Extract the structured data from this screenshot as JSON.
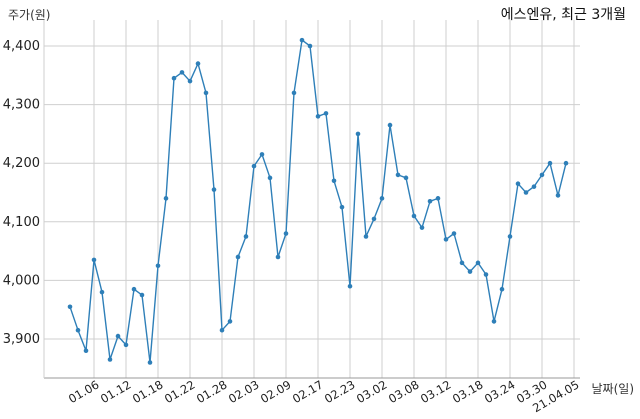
{
  "chart_data": {
    "type": "line",
    "title": "에스엔유, 최근 3개월",
    "xlabel": "날짜(일)",
    "ylabel": "주가(원)",
    "ylim": [
      3850,
      4430
    ],
    "yticks": [
      3900,
      4000,
      4100,
      4200,
      4300,
      4400
    ],
    "ytick_labels": [
      "3,900",
      "4,000",
      "4,100",
      "4,200",
      "4,300",
      "4,400"
    ],
    "xtick_labels": [
      "01.06",
      "01.12",
      "01.18",
      "01.22",
      "01.28",
      "02.03",
      "02.09",
      "02.17",
      "02.23",
      "03.02",
      "03.08",
      "03.12",
      "03.18",
      "03.24",
      "03.30",
      "21.04.05"
    ],
    "xtick_index": [
      3,
      7,
      11,
      15,
      19,
      23,
      27,
      31,
      35,
      39,
      43,
      47,
      51,
      55,
      59,
      63
    ],
    "grid": true,
    "line_color": "#2e7fb8",
    "series": [
      {
        "values": [
          3955,
          3915,
          3880,
          4035,
          3980,
          3865,
          3905,
          3890,
          3985,
          3975,
          3860,
          4025,
          4140,
          4345,
          4355,
          4340,
          4370,
          4320,
          4155,
          3915,
          3930,
          4040,
          4075,
          4195,
          4215,
          4175,
          4040,
          4080,
          4320,
          4410,
          4400,
          4280,
          4285,
          4170,
          4125,
          3990,
          4250,
          4075,
          4105,
          4140,
          4265,
          4180,
          4175,
          4110,
          4090,
          4135,
          4140,
          4070,
          4080,
          4030,
          4015,
          4030,
          4010,
          3930,
          3985,
          4075,
          4165,
          4150,
          4160,
          4180,
          4200,
          4145,
          4200
        ]
      }
    ]
  }
}
